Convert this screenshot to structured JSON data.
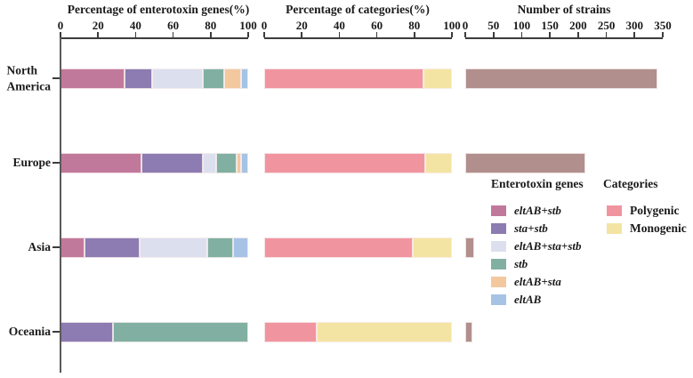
{
  "rows": [
    {
      "label": "North America",
      "lines": [
        "North",
        "America"
      ]
    },
    {
      "label": "Europe",
      "lines": [
        "Europe"
      ]
    },
    {
      "label": "Asia",
      "lines": [
        "Asia"
      ]
    },
    {
      "label": "Oceania",
      "lines": [
        "Oceania"
      ]
    }
  ],
  "legend": {
    "genes": {
      "title": "Enterotoxin genes",
      "items": [
        {
          "label": "eltAB+stb",
          "color": "#c1799b"
        },
        {
          "label": "sta+stb",
          "color": "#8c7cb1"
        },
        {
          "label": "eltAB+sta+stb",
          "color": "#dcdfee"
        },
        {
          "label": "stb",
          "color": "#81b0a3"
        },
        {
          "label": "eltAB+sta",
          "color": "#f3c89f"
        },
        {
          "label": "eltAB",
          "color": "#a6c3e6"
        }
      ]
    },
    "categories": {
      "title": "Categories",
      "items": [
        {
          "label": "Polygenic",
          "color": "#f095a0"
        },
        {
          "label": "Monogenic",
          "color": "#f3e4a3"
        }
      ]
    }
  },
  "chart_data": [
    {
      "type": "bar",
      "stacked": true,
      "orientation": "horizontal",
      "title": "Percentage of enterotoxin genes(%)",
      "categories": [
        "North America",
        "Europe",
        "Asia",
        "Oceania"
      ],
      "xlim": [
        0,
        100
      ],
      "xticks": [
        0,
        20,
        40,
        60,
        80,
        100
      ],
      "series": [
        {
          "name": "eltAB+stb",
          "color": "#c1799b",
          "values": [
            34,
            43,
            13,
            0
          ]
        },
        {
          "name": "sta+stb",
          "color": "#8c7cb1",
          "values": [
            15,
            33,
            29,
            28
          ]
        },
        {
          "name": "eltAB+sta+stb",
          "color": "#dcdfee",
          "values": [
            27,
            7,
            36,
            0
          ]
        },
        {
          "name": "stb",
          "color": "#81b0a3",
          "values": [
            11,
            11,
            14,
            72
          ]
        },
        {
          "name": "eltAB+sta",
          "color": "#f3c89f",
          "values": [
            9,
            2,
            0,
            0
          ]
        },
        {
          "name": "eltAB",
          "color": "#a6c3e6",
          "values": [
            4,
            4,
            8,
            0
          ]
        }
      ]
    },
    {
      "type": "bar",
      "stacked": true,
      "orientation": "horizontal",
      "title": "Percentage of categories(%)",
      "categories": [
        "North America",
        "Europe",
        "Asia",
        "Oceania"
      ],
      "xlim": [
        0,
        100
      ],
      "xticks": [
        0,
        20,
        40,
        60,
        80,
        100
      ],
      "series": [
        {
          "name": "Polygenic",
          "color": "#f095a0",
          "values": [
            85,
            86,
            79,
            28
          ]
        },
        {
          "name": "Monogenic",
          "color": "#f3e4a3",
          "values": [
            15,
            14,
            21,
            72
          ]
        }
      ]
    },
    {
      "type": "bar",
      "stacked": false,
      "orientation": "horizontal",
      "title": "Number of strains",
      "categories": [
        "North America",
        "Europe",
        "Asia",
        "Oceania"
      ],
      "xlim": [
        0,
        350
      ],
      "xticks": [
        0,
        50,
        100,
        150,
        200,
        250,
        300,
        350
      ],
      "series": [
        {
          "name": "Number of strains",
          "color": "#b18f8d",
          "values": [
            340,
            213,
            15,
            12
          ]
        }
      ]
    }
  ]
}
